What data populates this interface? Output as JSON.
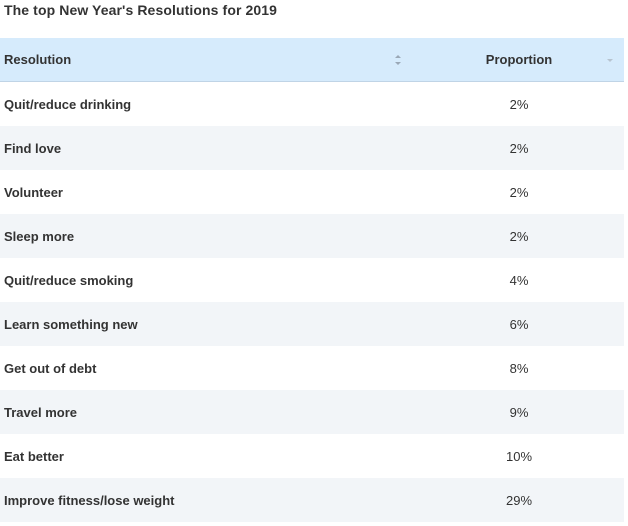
{
  "chart_data": {
    "type": "table",
    "title": "The top New Year's Resolutions for 2019",
    "columns": [
      "Resolution",
      "Proportion"
    ],
    "sort": {
      "column": "Proportion",
      "direction": "descending-indicator"
    },
    "rows": [
      {
        "resolution": "Quit/reduce drinking",
        "proportion": "2%"
      },
      {
        "resolution": "Find love",
        "proportion": "2%"
      },
      {
        "resolution": "Volunteer",
        "proportion": "2%"
      },
      {
        "resolution": "Sleep more",
        "proportion": "2%"
      },
      {
        "resolution": "Quit/reduce smoking",
        "proportion": "4%"
      },
      {
        "resolution": "Learn something new",
        "proportion": "6%"
      },
      {
        "resolution": "Get out of debt",
        "proportion": "8%"
      },
      {
        "resolution": "Travel more",
        "proportion": "9%"
      },
      {
        "resolution": "Eat better",
        "proportion": "10%"
      },
      {
        "resolution": "Improve fitness/lose weight",
        "proportion": "29%"
      }
    ]
  },
  "colors": {
    "header_background": "#d6ebfc",
    "stripe_background": "#f2f5f8",
    "text": "#333333"
  }
}
